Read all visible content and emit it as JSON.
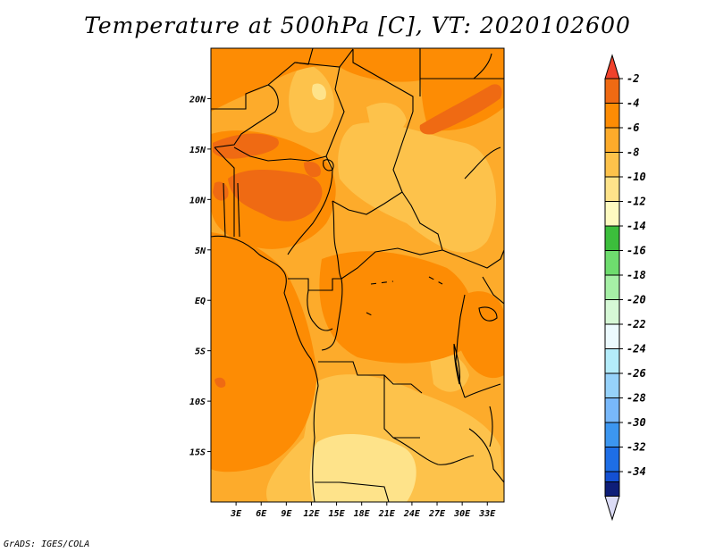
{
  "title": "Temperature at 500hPa [C], VT: 2020102600",
  "credit": "GrADS: IGES/COLA",
  "map": {
    "lon_range": [
      0,
      35
    ],
    "lat_range": [
      -20,
      25
    ],
    "background_color": "#fdab2b",
    "lat_ticks": [
      {
        "lat": 20,
        "label": "20N"
      },
      {
        "lat": 15,
        "label": "15N"
      },
      {
        "lat": 10,
        "label": "10N"
      },
      {
        "lat": 5,
        "label": "5N"
      },
      {
        "lat": 0,
        "label": "EQ"
      },
      {
        "lat": -5,
        "label": "5S"
      },
      {
        "lat": -10,
        "label": "10S"
      },
      {
        "lat": -15,
        "label": "15S"
      }
    ],
    "lon_ticks": [
      {
        "lon": 3,
        "label": "3E"
      },
      {
        "lon": 6,
        "label": "6E"
      },
      {
        "lon": 9,
        "label": "9E"
      },
      {
        "lon": 12,
        "label": "12E"
      },
      {
        "lon": 15,
        "label": "15E"
      },
      {
        "lon": 18,
        "label": "18E"
      },
      {
        "lon": 21,
        "label": "21E"
      },
      {
        "lon": 24,
        "label": "24E"
      },
      {
        "lon": 27,
        "label": "27E"
      },
      {
        "lon": 30,
        "label": "30E"
      },
      {
        "lon": 33,
        "label": "33E"
      }
    ]
  },
  "colorbar": {
    "bins": [
      {
        "label": "-2",
        "color": "#ef6a13"
      },
      {
        "label": "-4",
        "color": "#fd8c04"
      },
      {
        "label": "-6",
        "color": "#fdab2b"
      },
      {
        "label": "-8",
        "color": "#fdc24b"
      },
      {
        "label": "-10",
        "color": "#fee38a"
      },
      {
        "label": "-12",
        "color": "#fefac0"
      },
      {
        "label": "-14",
        "color": "#3cbe3c"
      },
      {
        "label": "-16",
        "color": "#6edc6e"
      },
      {
        "label": "-18",
        "color": "#a6f0a6"
      },
      {
        "label": "-20",
        "color": "#d6f8d6"
      },
      {
        "label": "-22",
        "color": "#ecfafe"
      },
      {
        "label": "-24",
        "color": "#b4ecfa"
      },
      {
        "label": "-26",
        "color": "#96d2fa"
      },
      {
        "label": "-28",
        "color": "#78b8fa"
      },
      {
        "label": "-30",
        "color": "#3c96f0"
      },
      {
        "label": "-32",
        "color": "#1e6ee6"
      },
      {
        "label": "-34",
        "color": "#1450d2"
      }
    ],
    "top_arrow_color": "#f0422c",
    "bottom_arrow_color": "#dcdcf6",
    "extra_bottom_color": "#0e1e78"
  }
}
